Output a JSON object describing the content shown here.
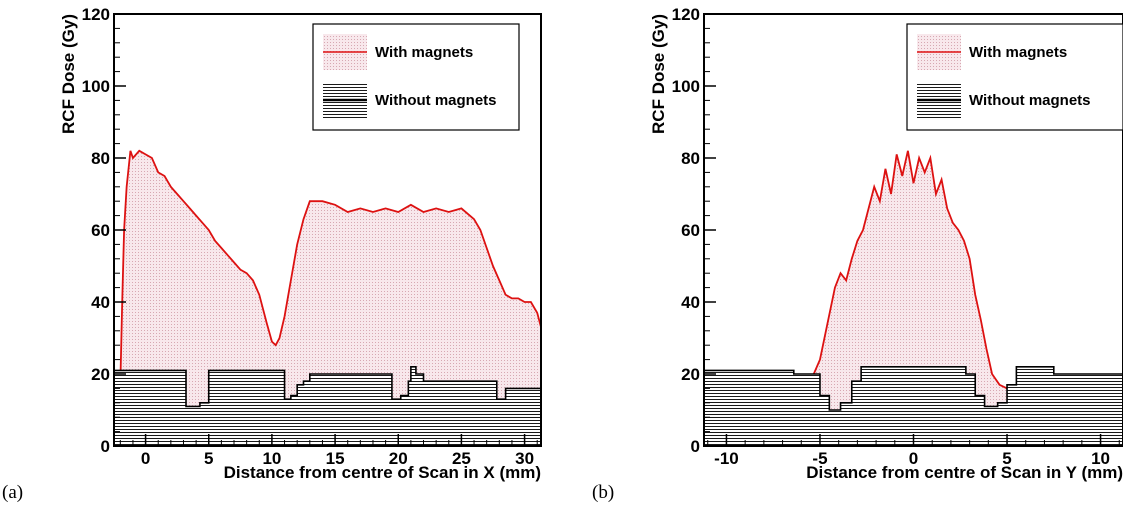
{
  "chart_data": [
    {
      "type": "area",
      "panel_label": "(a)",
      "xlabel": "Distance from centre of Scan in X (mm)",
      "ylabel": "RCF Dose (Gy)",
      "xlim": [
        -2.5,
        31.3
      ],
      "ylim": [
        0,
        120
      ],
      "xticks": [
        0,
        5,
        10,
        15,
        20,
        25,
        30
      ],
      "yticks": [
        0,
        20,
        40,
        60,
        80,
        100,
        120
      ],
      "legend_placement": "top-right",
      "legend": [
        "With magnets",
        "Without magnets"
      ],
      "series": [
        {
          "name": "With magnets",
          "color": "#dd1111",
          "fill": "pink-dotted",
          "x": [
            -2.5,
            -2.0,
            -1.85,
            -1.7,
            -1.5,
            -1.2,
            -1.0,
            -0.5,
            0,
            0.5,
            1.0,
            1.5,
            2.0,
            2.5,
            3.0,
            3.5,
            4.0,
            4.5,
            5.0,
            5.5,
            6.0,
            6.5,
            7.0,
            7.5,
            8.0,
            8.5,
            9.0,
            9.3,
            9.6,
            10.0,
            10.3,
            10.6,
            11.0,
            11.5,
            12.0,
            12.5,
            13.0,
            14.0,
            15.0,
            16.0,
            17.0,
            18.0,
            19.0,
            20.0,
            21.0,
            22.0,
            23.0,
            24.0,
            25.0,
            26.0,
            26.5,
            27.0,
            27.5,
            28.0,
            28.5,
            29.0,
            29.5,
            30.0,
            30.5,
            31.0,
            31.3
          ],
          "y": [
            16,
            17,
            40,
            60,
            72,
            82,
            80,
            82,
            81,
            80,
            76,
            75,
            72,
            70,
            68,
            66,
            64,
            62,
            60,
            57,
            55,
            53,
            51,
            49,
            48,
            46,
            42,
            38,
            34,
            29,
            28,
            30,
            36,
            46,
            56,
            63,
            68,
            68,
            67,
            65,
            66,
            65,
            66,
            65,
            67,
            65,
            66,
            65,
            66,
            63,
            60,
            55,
            50,
            46,
            42,
            41,
            41,
            40,
            40,
            37,
            33
          ]
        },
        {
          "name": "Without magnets",
          "color": "#000000",
          "fill": "hatched",
          "x": [
            -2.5,
            2.8,
            3.2,
            4.3,
            5.0,
            10.3,
            11.0,
            11.5,
            12.0,
            12.5,
            13.0,
            18.8,
            19.5,
            20.2,
            20.8,
            21.0,
            21.4,
            22.0,
            27.0,
            27.8,
            28.5,
            31.3
          ],
          "y": [
            21,
            21,
            11,
            12,
            21,
            21,
            13,
            14,
            17,
            18,
            20,
            20,
            13,
            14,
            18,
            22,
            20,
            18,
            18,
            13,
            16,
            16
          ]
        }
      ]
    },
    {
      "type": "area",
      "panel_label": "(b)",
      "xlabel": "Distance from centre of Scan in Y (mm)",
      "ylabel": "RCF Dose (Gy)",
      "xlim": [
        -11.2,
        11.2
      ],
      "ylim": [
        0,
        120
      ],
      "xticks": [
        -10,
        -5,
        0,
        5,
        10
      ],
      "yticks": [
        0,
        20,
        40,
        60,
        80,
        100,
        120
      ],
      "legend_placement": "top-right",
      "legend": [
        "With magnets",
        "Without magnets"
      ],
      "series": [
        {
          "name": "With magnets",
          "color": "#dd1111",
          "fill": "pink-dotted",
          "x": [
            -11.2,
            -10.0,
            -9.0,
            -8.0,
            -7.0,
            -6.0,
            -5.5,
            -5.0,
            -4.6,
            -4.2,
            -3.9,
            -3.6,
            -3.3,
            -3.0,
            -2.7,
            -2.4,
            -2.1,
            -1.8,
            -1.5,
            -1.2,
            -0.9,
            -0.6,
            -0.3,
            0,
            0.3,
            0.6,
            0.9,
            1.2,
            1.5,
            1.8,
            2.1,
            2.4,
            2.7,
            3.0,
            3.3,
            3.6,
            3.9,
            4.2,
            4.6,
            5.0,
            6.0,
            7.0,
            8.0,
            9.0,
            10.0,
            11.2
          ],
          "y": [
            10,
            11,
            12,
            13,
            14,
            16,
            18,
            24,
            34,
            44,
            48,
            46,
            52,
            57,
            60,
            66,
            72,
            68,
            77,
            70,
            81,
            75,
            82,
            73,
            80,
            76,
            80,
            70,
            74,
            66,
            62,
            60,
            57,
            52,
            42,
            35,
            27,
            20,
            17,
            16,
            15,
            14,
            13,
            12,
            11,
            10
          ]
        },
        {
          "name": "Without magnets",
          "color": "#000000",
          "fill": "hatched",
          "x": [
            -11.2,
            -6.8,
            -6.4,
            -5.6,
            -5.0,
            -4.5,
            -3.9,
            -3.3,
            -2.8,
            2.8,
            3.3,
            3.8,
            4.5,
            5.0,
            5.5,
            7.5,
            11.2
          ],
          "y": [
            21,
            21,
            20,
            20,
            14,
            10,
            12,
            18,
            22,
            20,
            14,
            11,
            12,
            17,
            22,
            20,
            20
          ]
        }
      ]
    }
  ]
}
